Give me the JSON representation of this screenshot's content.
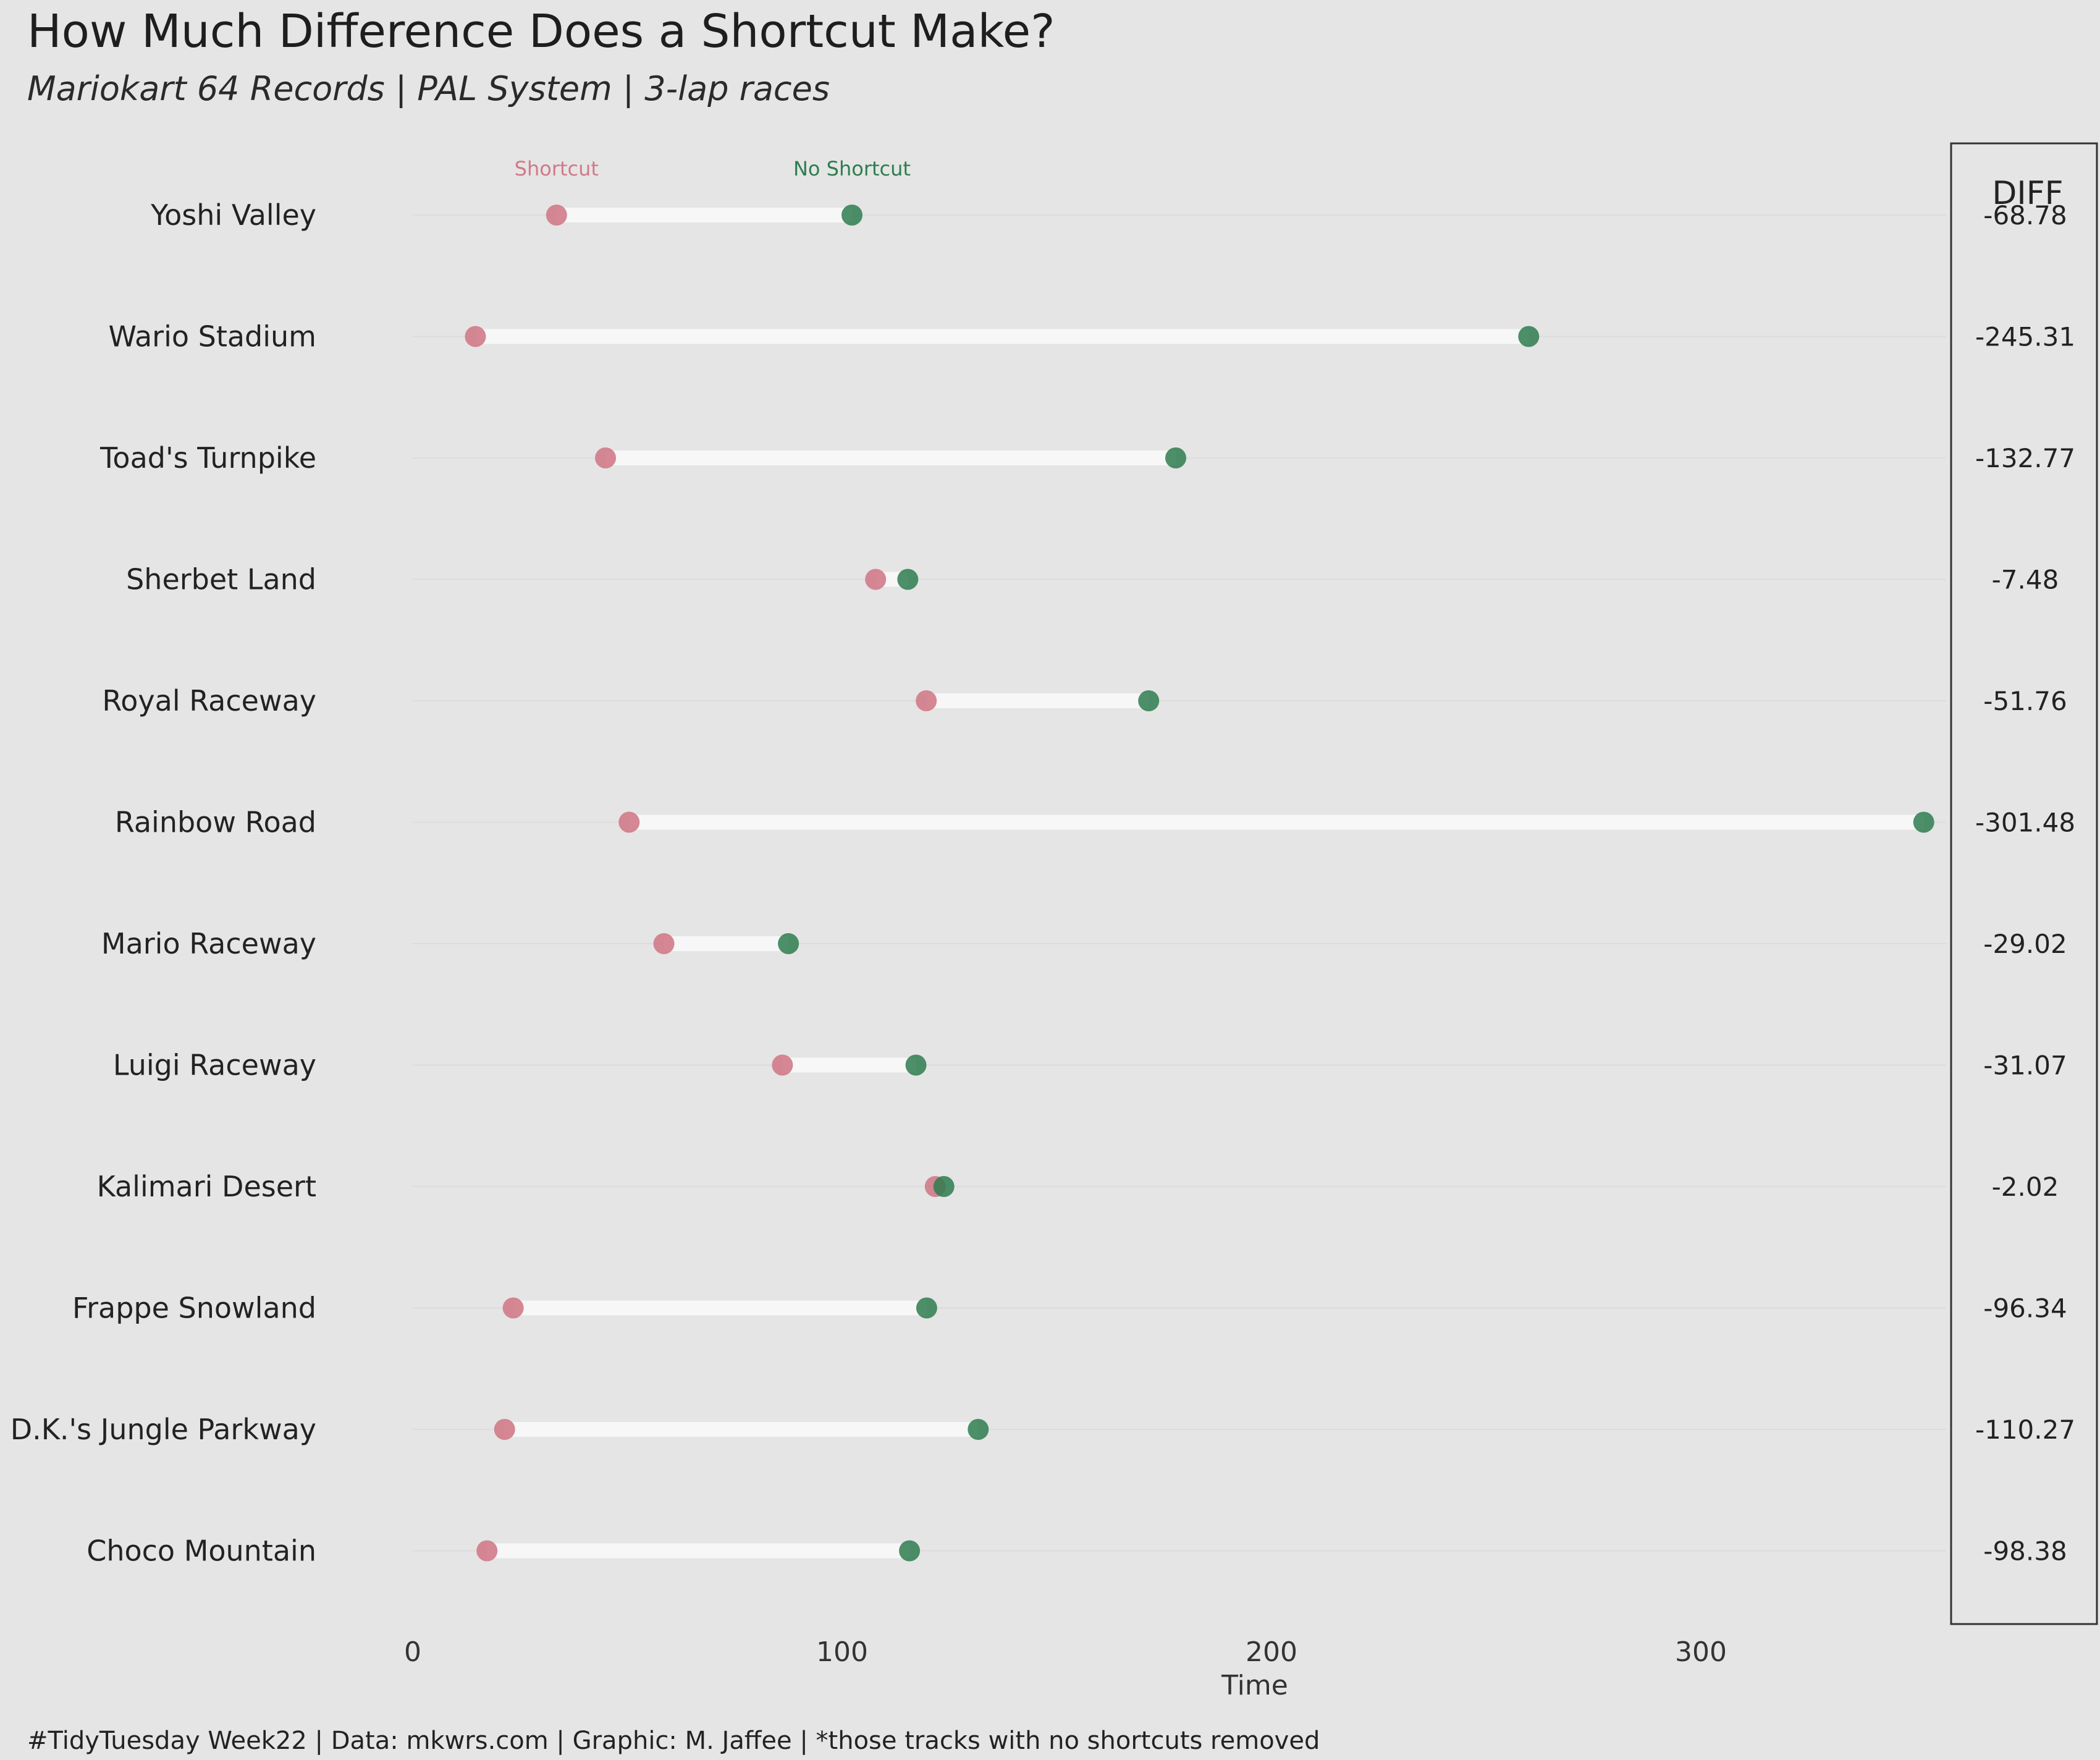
{
  "title": "How Much Difference Does a Shortcut Make?",
  "subtitle": "Mariokart 64 Records | PAL System | 3-lap races",
  "caption": "#TidyTuesday Week22 | Data: mkwrs.com | Graphic: M. Jaffee | *those tracks with no shortcuts removed",
  "colors": {
    "background": "#e5e5e5",
    "shortcut": "#d07a88",
    "no_shortcut": "#2e7d4f",
    "segment": "#f7f7f7",
    "gridline": "#dcdcdc",
    "border": "#333333"
  },
  "chart_data": {
    "type": "dumbbell",
    "xlabel": "Time",
    "xlim": [
      0,
      352
    ],
    "xticks": [
      0,
      100,
      200,
      300
    ],
    "grid": "horizontal",
    "legend_labels": {
      "shortcut": "Shortcut",
      "no_shortcut": "No Shortcut"
    },
    "diff_header": "DIFF",
    "categories": [
      "Yoshi Valley",
      "Wario Stadium",
      "Toad's Turnpike",
      "Sherbet Land",
      "Royal Raceway",
      "Rainbow Road",
      "Mario Raceway",
      "Luigi Raceway",
      "Kalimari Desert",
      "Frappe Snowland",
      "D.K.'s Jungle Parkway",
      "Choco Mountain"
    ],
    "series": [
      {
        "name": "Shortcut",
        "values": [
          33.5,
          14.6,
          44.9,
          107.8,
          119.6,
          50.4,
          58.5,
          86.1,
          121.7,
          23.4,
          21.4,
          17.3
        ]
      },
      {
        "name": "No Shortcut",
        "values": [
          102.3,
          259.9,
          177.7,
          115.3,
          171.4,
          351.9,
          87.5,
          117.2,
          123.7,
          119.7,
          131.7,
          115.7
        ]
      }
    ],
    "diff": [
      "-68.78",
      "-245.31",
      "-132.77",
      "-7.48",
      "-51.76",
      "-301.48",
      "-29.02",
      "-31.07",
      "-2.02",
      "-96.34",
      "-110.27",
      "-98.38"
    ]
  }
}
